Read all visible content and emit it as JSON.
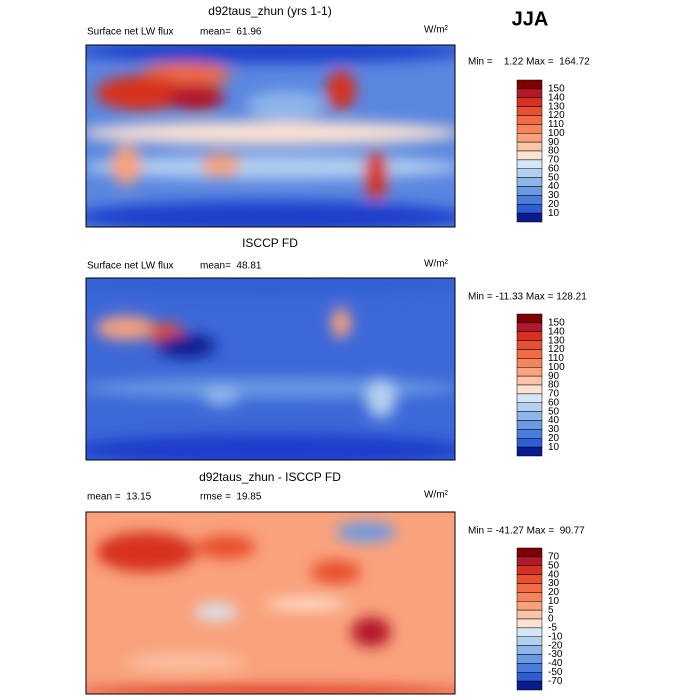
{
  "season": "JJA",
  "colors": [
    "#7f0000",
    "#b2182b",
    "#d6301e",
    "#e8502f",
    "#f26b45",
    "#f7845a",
    "#f9a27c",
    "#fbc4a6",
    "#fde3d2",
    "#d6e6f7",
    "#b3d0f0",
    "#8db6ea",
    "#6a9ae2",
    "#4a7ddb",
    "#2d5fd3",
    "#0a1a8f"
  ],
  "panels": [
    {
      "title": "d92taus_zhun (yrs 1-1)",
      "stat_left": "Surface net LW flux",
      "stat_right": "mean=  61.96",
      "units": "W/m²",
      "range": "Min =    1.22 Max =  164.72",
      "levels": [
        150,
        140,
        130,
        120,
        110,
        100,
        90,
        80,
        70,
        60,
        50,
        40,
        30,
        20,
        10
      ]
    },
    {
      "title": "ISCCP FD",
      "stat_left": "Surface net LW flux",
      "stat_right": "mean=  48.81",
      "units": "W/m²",
      "range": "Min = -11.33 Max = 128.21",
      "levels": [
        150,
        140,
        130,
        120,
        110,
        100,
        90,
        80,
        70,
        60,
        50,
        40,
        30,
        20,
        10
      ]
    },
    {
      "title": "d92taus_zhun - ISCCP FD",
      "stat_left": "mean =  13.15",
      "stat_right": "rmse =  19.85",
      "units": "W/m²",
      "range": "Min = -41.27 Max =  90.77",
      "levels": [
        70,
        50,
        40,
        30,
        20,
        10,
        5,
        0,
        -5,
        -10,
        -20,
        -30,
        -40,
        -50,
        -70
      ]
    }
  ]
}
